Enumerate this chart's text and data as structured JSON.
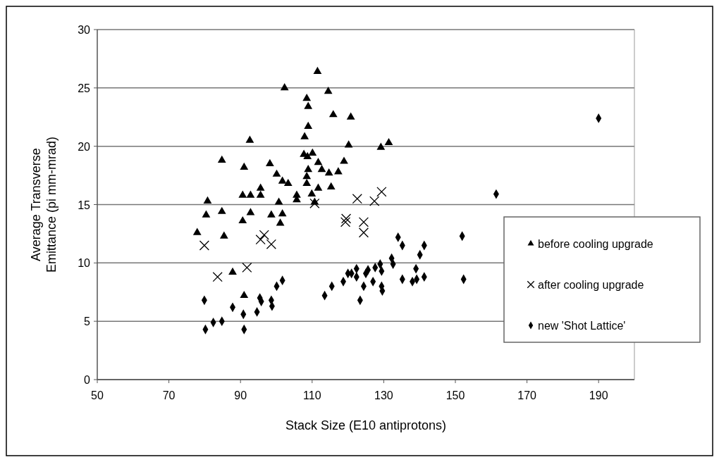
{
  "chart_data": {
    "type": "scatter",
    "xlabel": "Stack Size (E10 antiprotons)",
    "ylabel": "Average Transverse\nEmittance (pi mm-mrad)",
    "xlim": [
      50,
      200
    ],
    "xticks": [
      50,
      70,
      90,
      110,
      130,
      150,
      170,
      190
    ],
    "ylim": [
      0,
      30
    ],
    "yticks": [
      0,
      5,
      10,
      15,
      20,
      25,
      30
    ],
    "grid": "y",
    "legend": "right",
    "series": [
      {
        "name": "before cooling upgrade",
        "color": "#000000",
        "marker": "triangle",
        "x": [
          80.8,
          84.8,
          92.6,
          91.0,
          98.2,
          100.1,
          101.7,
          90.6,
          92.8,
          95.6,
          95.6,
          100.7,
          80.4,
          84.8,
          92.8,
          90.6,
          98.6,
          101.7,
          101.1,
          77.9,
          85.4,
          111.5,
          102.3,
          114.5,
          108.5,
          108.9,
          115.9,
          120.8,
          108.9,
          107.9,
          120.2,
          129.2,
          131.4,
          107.7,
          110.1,
          108.7,
          111.7,
          118.9,
          108.9,
          112.7,
          114.7,
          117.3,
          103.3,
          108.5,
          108.5,
          111.7,
          115.3,
          109.9,
          105.7,
          105.7,
          110.7,
          87.8,
          91.0
        ],
        "values": [
          15.3,
          18.8,
          20.5,
          18.2,
          18.5,
          17.6,
          17.0,
          15.8,
          15.8,
          16.4,
          15.8,
          15.2,
          14.1,
          14.4,
          14.3,
          13.6,
          14.1,
          14.2,
          13.4,
          12.6,
          12.3,
          26.4,
          25.0,
          24.7,
          24.1,
          23.4,
          22.7,
          22.5,
          21.7,
          20.8,
          20.1,
          19.9,
          20.3,
          19.3,
          19.4,
          19.1,
          18.6,
          18.7,
          18.0,
          18.0,
          17.7,
          17.8,
          16.8,
          17.4,
          16.8,
          16.4,
          16.5,
          15.9,
          15.8,
          15.4,
          15.2,
          9.2,
          7.2
        ]
      },
      {
        "name": "after cooling upgrade",
        "color": "#000000",
        "marker": "cross",
        "x": [
          83.6,
          91.8,
          79.9,
          96.6,
          95.6,
          98.6,
          122.6,
          127.4,
          129.4,
          119.3,
          119.5,
          124.4,
          124.4,
          110.7
        ],
        "values": [
          8.8,
          9.6,
          11.5,
          12.4,
          12.0,
          11.6,
          15.5,
          15.3,
          16.1,
          13.5,
          13.8,
          13.5,
          12.6,
          15.1
        ]
      },
      {
        "name": "new 'Shot Lattice'",
        "color": "#000000",
        "marker": "diamond",
        "x": [
          79.9,
          80.2,
          82.4,
          84.8,
          87.8,
          90.8,
          91.0,
          94.6,
          95.4,
          95.8,
          98.6,
          98.8,
          100.1,
          101.7,
          113.5,
          115.5,
          118.7,
          120.0,
          121.0,
          122.4,
          122.4,
          124.4,
          125.0,
          125.6,
          123.4,
          127.0,
          127.6,
          129.0,
          129.4,
          129.4,
          129.6,
          132.2,
          132.6,
          134.0,
          135.2,
          135.2,
          138.0,
          139.2,
          139.0,
          140.1,
          141.3,
          141.3,
          151.9,
          152.3,
          161.4,
          190
        ],
        "values": [
          6.8,
          4.3,
          4.9,
          5.0,
          6.2,
          5.6,
          4.3,
          5.8,
          7.0,
          6.7,
          6.8,
          6.3,
          8.0,
          8.5,
          7.2,
          8.0,
          8.4,
          9.1,
          9.1,
          9.5,
          8.8,
          8.0,
          9.1,
          9.4,
          6.8,
          8.4,
          9.6,
          9.9,
          9.3,
          8.0,
          7.6,
          10.4,
          9.9,
          12.2,
          11.5,
          8.6,
          8.4,
          8.6,
          9.5,
          10.7,
          11.5,
          8.8,
          12.3,
          8.6,
          15.9,
          22.4
        ]
      }
    ]
  }
}
